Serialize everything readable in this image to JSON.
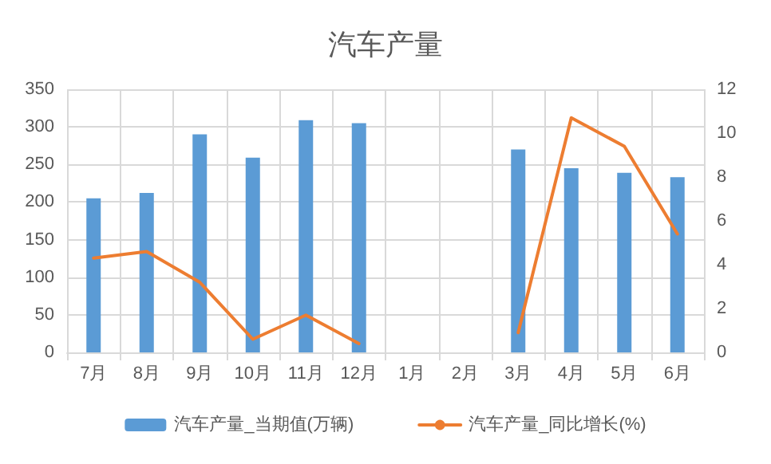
{
  "chart_data": {
    "type": "bar",
    "title": "汽车产量",
    "categories": [
      "7月",
      "8月",
      "9月",
      "10月",
      "11月",
      "12月",
      "1月",
      "2月",
      "3月",
      "4月",
      "5月",
      "6月"
    ],
    "series": [
      {
        "name": "汽车产量_当期值(万辆)",
        "color": "#5b9bd5",
        "values": [
          205,
          212,
          290,
          259,
          309,
          305,
          null,
          null,
          270,
          245,
          239,
          233
        ]
      },
      {
        "name": "汽车产量_同比增长(%)",
        "type": "line",
        "axis": "y2",
        "color": "#ed7d31",
        "values": [
          4.3,
          4.6,
          3.2,
          0.6,
          1.7,
          0.4,
          null,
          null,
          0.9,
          10.7,
          9.4,
          5.4
        ]
      }
    ],
    "ylim": [
      0,
      350
    ],
    "yticks": [
      0,
      50,
      100,
      150,
      200,
      250,
      300,
      350
    ],
    "y2lim": [
      0,
      12
    ],
    "y2ticks": [
      0,
      2,
      4,
      6,
      8,
      10,
      12
    ],
    "grid": true,
    "legend": "bottom",
    "marker": "none"
  }
}
